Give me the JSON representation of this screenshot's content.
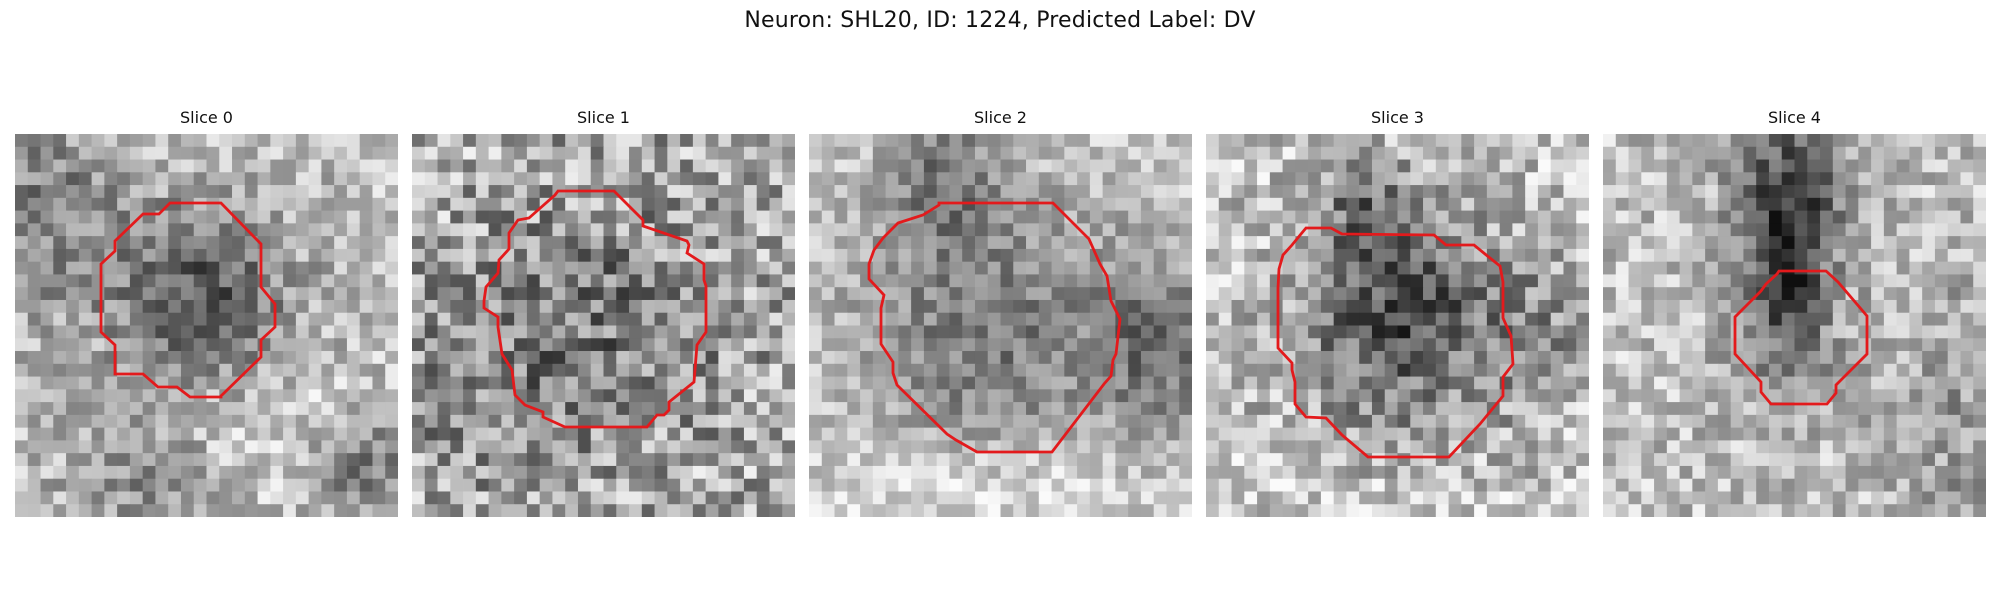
{
  "figure": {
    "title": "Neuron: SHL20, ID: 1224, Predicted Label: DV"
  },
  "colors": {
    "contour": "#e31a1c"
  },
  "panels": [
    {
      "title": "Slice 0"
    },
    {
      "title": "Slice 1"
    },
    {
      "title": "Slice 2"
    },
    {
      "title": "Slice 3"
    },
    {
      "title": "Slice 4"
    }
  ]
}
